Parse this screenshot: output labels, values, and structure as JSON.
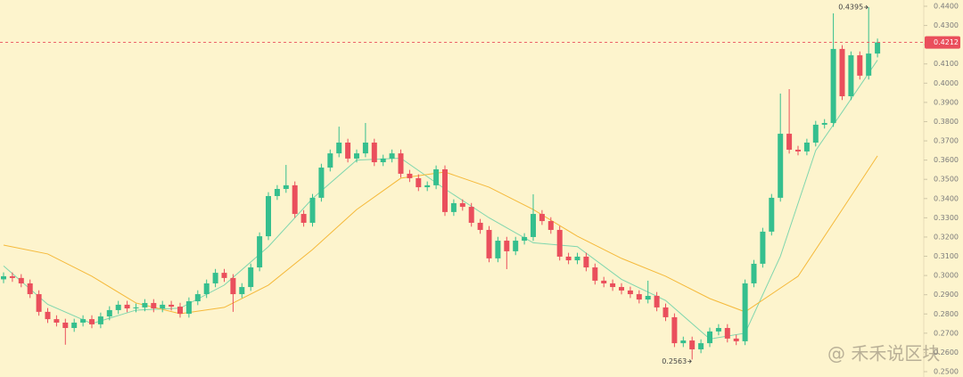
{
  "chart_data": {
    "type": "candlestick",
    "ylim": [
      0.25,
      0.44
    ],
    "yticks": [
      {
        "value": 0.44,
        "label": "0.4400"
      },
      {
        "value": 0.43,
        "label": "0.4300"
      },
      {
        "value": 0.42,
        "label": "0.4200"
      },
      {
        "value": 0.41,
        "label": "0.4100"
      },
      {
        "value": 0.4,
        "label": "0.4000"
      },
      {
        "value": 0.39,
        "label": "0.3900"
      },
      {
        "value": 0.38,
        "label": "0.3800"
      },
      {
        "value": 0.37,
        "label": "0.3700"
      },
      {
        "value": 0.36,
        "label": "0.3600"
      },
      {
        "value": 0.35,
        "label": "0.3500"
      },
      {
        "value": 0.34,
        "label": "0.3400"
      },
      {
        "value": 0.33,
        "label": "0.3300"
      },
      {
        "value": 0.32,
        "label": "0.3200"
      },
      {
        "value": 0.31,
        "label": "0.3100"
      },
      {
        "value": 0.3,
        "label": "0.3000"
      },
      {
        "value": 0.29,
        "label": "0.2900"
      },
      {
        "value": 0.28,
        "label": "0.2800"
      },
      {
        "value": 0.27,
        "label": "0.2700"
      },
      {
        "value": 0.26,
        "label": "0.2600"
      },
      {
        "value": 0.25,
        "label": "0.2500"
      }
    ],
    "up_color": "#35bf8e",
    "down_color": "#ea4f5c",
    "open": [
      0.298,
      0.2996,
      0.2987,
      0.2959,
      0.2903,
      0.2811,
      0.2773,
      0.2755,
      0.2727,
      0.2755,
      0.2773,
      0.2746,
      0.2787,
      0.282,
      0.2848,
      0.2829,
      0.2834,
      0.2857,
      0.2829,
      0.2848,
      0.2838,
      0.2801,
      0.2866,
      0.2903,
      0.2959,
      0.3014,
      0.2987,
      0.2903,
      0.294,
      0.3042,
      0.3204,
      0.3413,
      0.345,
      0.3469,
      0.332,
      0.3274,
      0.3404,
      0.3561,
      0.3635,
      0.3691,
      0.3608,
      0.3635,
      0.3691,
      0.3589,
      0.3608,
      0.3635,
      0.3529,
      0.3506,
      0.3459,
      0.3469,
      0.3552,
      0.333,
      0.3376,
      0.3357,
      0.3274,
      0.3237,
      0.3089,
      0.3181,
      0.3126,
      0.3181,
      0.32,
      0.332,
      0.3283,
      0.3237,
      0.3098,
      0.3079,
      0.3098,
      0.3042,
      0.2973,
      0.2959,
      0.294,
      0.2922,
      0.2903,
      0.2875,
      0.2894,
      0.2834,
      0.2783,
      0.2648,
      0.2662,
      0.2616,
      0.2648,
      0.2709,
      0.2727,
      0.2672,
      0.2658,
      0.2959,
      0.3061,
      0.3228,
      0.3404,
      0.3737,
      0.3654,
      0.3645,
      0.3691,
      0.3784,
      0.3793,
      0.4178,
      0.3932,
      0.4145,
      0.4039,
      0.4154
    ],
    "high": [
      0.3016,
      0.3016,
      0.3007,
      0.2979,
      0.2923,
      0.2831,
      0.2793,
      0.2775,
      0.2775,
      0.2793,
      0.2793,
      0.2807,
      0.284,
      0.2868,
      0.2868,
      0.2854,
      0.2877,
      0.2877,
      0.2868,
      0.2868,
      0.2858,
      0.2886,
      0.2923,
      0.2979,
      0.3034,
      0.3034,
      0.3007,
      0.296,
      0.3062,
      0.3224,
      0.3433,
      0.347,
      0.3575,
      0.3489,
      0.334,
      0.3424,
      0.3581,
      0.3655,
      0.3774,
      0.3711,
      0.3655,
      0.3793,
      0.3711,
      0.3628,
      0.3655,
      0.3655,
      0.3549,
      0.3526,
      0.3489,
      0.3572,
      0.3572,
      0.3396,
      0.3396,
      0.3377,
      0.3294,
      0.3257,
      0.3201,
      0.3201,
      0.3201,
      0.322,
      0.3422,
      0.334,
      0.3303,
      0.3257,
      0.3118,
      0.3118,
      0.3118,
      0.3062,
      0.2993,
      0.2979,
      0.296,
      0.2942,
      0.2923,
      0.2973,
      0.2914,
      0.2854,
      0.2803,
      0.2682,
      0.2682,
      0.2668,
      0.2729,
      0.2747,
      0.2747,
      0.2692,
      0.2979,
      0.3081,
      0.3248,
      0.3424,
      0.3946,
      0.3969,
      0.3674,
      0.3711,
      0.3804,
      0.3813,
      0.4363,
      0.4198,
      0.4165,
      0.4165,
      0.4395,
      0.4232
    ],
    "low": [
      0.296,
      0.2967,
      0.2939,
      0.2883,
      0.2791,
      0.2753,
      0.2735,
      0.264,
      0.2707,
      0.2735,
      0.2726,
      0.2726,
      0.2767,
      0.28,
      0.2809,
      0.2809,
      0.2814,
      0.2809,
      0.2809,
      0.2818,
      0.2781,
      0.2781,
      0.2846,
      0.2883,
      0.2939,
      0.2967,
      0.2811,
      0.2883,
      0.292,
      0.3022,
      0.3184,
      0.3393,
      0.343,
      0.33,
      0.3254,
      0.3254,
      0.3384,
      0.3541,
      0.3615,
      0.3588,
      0.3588,
      0.3615,
      0.3569,
      0.3569,
      0.3588,
      0.3509,
      0.3486,
      0.3439,
      0.3439,
      0.3449,
      0.331,
      0.331,
      0.3337,
      0.3254,
      0.3217,
      0.3069,
      0.3069,
      0.3033,
      0.3106,
      0.3161,
      0.318,
      0.3263,
      0.3217,
      0.3078,
      0.3059,
      0.3059,
      0.3022,
      0.2953,
      0.2939,
      0.292,
      0.2902,
      0.2883,
      0.2855,
      0.2855,
      0.2814,
      0.2763,
      0.2628,
      0.2628,
      0.2563,
      0.2596,
      0.2628,
      0.2689,
      0.2652,
      0.2638,
      0.2638,
      0.2939,
      0.3041,
      0.3208,
      0.3384,
      0.3634,
      0.3625,
      0.3625,
      0.3671,
      0.3764,
      0.3773,
      0.3912,
      0.3912,
      0.4019,
      0.4019,
      0.4134
    ],
    "close": [
      0.2996,
      0.2987,
      0.2959,
      0.2903,
      0.2811,
      0.2773,
      0.2755,
      0.2727,
      0.2755,
      0.2773,
      0.2746,
      0.2787,
      0.282,
      0.2848,
      0.2829,
      0.2834,
      0.2857,
      0.2829,
      0.2848,
      0.2838,
      0.2801,
      0.2866,
      0.2903,
      0.2959,
      0.3014,
      0.2987,
      0.2903,
      0.294,
      0.3042,
      0.3204,
      0.3413,
      0.345,
      0.3469,
      0.332,
      0.3274,
      0.3404,
      0.3561,
      0.3635,
      0.3691,
      0.3608,
      0.3635,
      0.3691,
      0.3589,
      0.3608,
      0.3635,
      0.3529,
      0.3506,
      0.3459,
      0.3469,
      0.3552,
      0.333,
      0.3376,
      0.3357,
      0.3274,
      0.3237,
      0.3089,
      0.3181,
      0.3126,
      0.3181,
      0.32,
      0.332,
      0.3283,
      0.3237,
      0.3098,
      0.3079,
      0.3098,
      0.3042,
      0.2973,
      0.2959,
      0.294,
      0.2922,
      0.2903,
      0.2875,
      0.2894,
      0.2834,
      0.2783,
      0.2648,
      0.2662,
      0.2616,
      0.2648,
      0.2709,
      0.2727,
      0.2672,
      0.2658,
      0.2959,
      0.3061,
      0.3228,
      0.3404,
      0.3737,
      0.3654,
      0.3645,
      0.3691,
      0.3784,
      0.3793,
      0.4178,
      0.3932,
      0.4145,
      0.4039,
      0.4154,
      0.4212
    ],
    "overlays": [
      {
        "color": "#7fd6ae",
        "x": [
          0,
          5,
          10,
          15,
          20,
          25,
          30,
          35,
          40,
          45,
          50,
          55,
          60,
          65,
          70,
          75,
          80,
          84,
          88,
          92,
          95,
          99
        ],
        "values": [
          0.305,
          0.285,
          0.275,
          0.282,
          0.283,
          0.295,
          0.315,
          0.34,
          0.36,
          0.361,
          0.345,
          0.33,
          0.317,
          0.315,
          0.298,
          0.287,
          0.267,
          0.27,
          0.31,
          0.365,
          0.385,
          0.412
        ]
      },
      {
        "color": "#f5b93a",
        "x": [
          0,
          5,
          10,
          15,
          20,
          25,
          30,
          35,
          40,
          45,
          50,
          55,
          60,
          65,
          70,
          75,
          80,
          84,
          90,
          95,
          99
        ],
        "values": [
          0.3158,
          0.3112,
          0.2996,
          0.2857,
          0.2801,
          0.2834,
          0.295,
          0.3135,
          0.3343,
          0.3506,
          0.3538,
          0.3459,
          0.3343,
          0.3204,
          0.3089,
          0.2996,
          0.288,
          0.2811,
          0.2996,
          0.3343,
          0.3622
        ]
      }
    ],
    "last_price": {
      "value": 0.4212,
      "label": "0.4212"
    },
    "high_marker": {
      "value": 0.4395,
      "label": "0.4395"
    },
    "low_marker": {
      "value": 0.2563,
      "label": "0.2563"
    },
    "watermark": "@ 禾禾说区块"
  }
}
